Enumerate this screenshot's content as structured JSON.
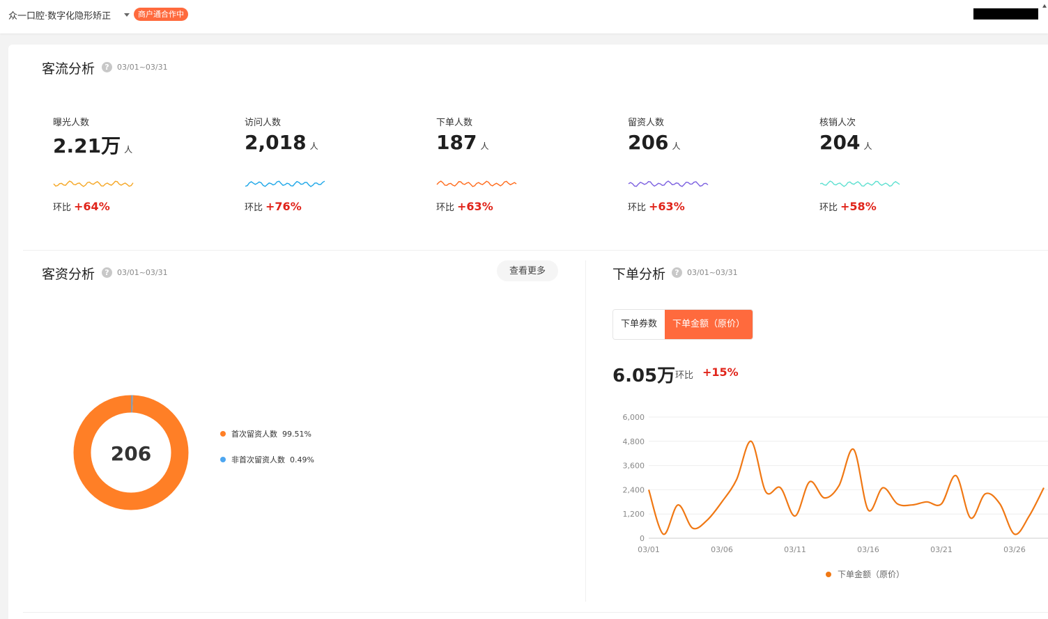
{
  "header": {
    "shop_name": "众一口腔·数字化隐形矫正",
    "badge": "商户通合作中"
  },
  "traffic": {
    "title": "客流分析",
    "date_range": "03/01~03/31",
    "help": "?",
    "kpis": [
      {
        "label": "曝光人数",
        "value": "2.21万",
        "unit": "人",
        "mom_label": "环比",
        "mom": "+64%",
        "color": "#f5a623"
      },
      {
        "label": "访问人数",
        "value": "2,018",
        "unit": "人",
        "mom_label": "环比",
        "mom": "+76%",
        "color": "#1ea7e8"
      },
      {
        "label": "下单人数",
        "value": "187",
        "unit": "人",
        "mom_label": "环比",
        "mom": "+63%",
        "color": "#ff6a1a"
      },
      {
        "label": "留资人数",
        "value": "206",
        "unit": "人",
        "mom_label": "环比",
        "mom": "+63%",
        "color": "#7b5fe0"
      },
      {
        "label": "核销人次",
        "value": "204",
        "unit": "人",
        "mom_label": "环比",
        "mom": "+58%",
        "color": "#5ee0d0"
      }
    ]
  },
  "leads": {
    "title": "客资分析",
    "date_range": "03/01~03/31",
    "help": "?",
    "more_label": "查看更多",
    "donut_center": "206",
    "donut_colors": {
      "first": "#ff7f26",
      "repeat": "#8e9aa8"
    },
    "legend": [
      {
        "label": "首次留资人数",
        "value": "99.51%",
        "color": "#ff7f26"
      },
      {
        "label": "非首次留资人数",
        "value": "0.49%",
        "color": "#4da6f0"
      }
    ]
  },
  "orders": {
    "title": "下单分析",
    "date_range": "03/01~03/31",
    "help": "?",
    "tabs": [
      {
        "label": "下单券数",
        "active": false
      },
      {
        "label": "下单金额（原价）",
        "active": true
      }
    ],
    "total": "6.05万",
    "mom_label": "环比",
    "mom": "+15%"
  },
  "chart_data": {
    "type": "line",
    "title": "",
    "xlabel": "",
    "ylabel": "",
    "x_ticks": [
      "03/01",
      "03/06",
      "03/11",
      "03/16",
      "03/21",
      "03/26"
    ],
    "y_ticks": [
      0,
      1200,
      2400,
      3600,
      4800,
      6000
    ],
    "y_tick_labels": [
      "0",
      "1,200",
      "2,400",
      "3,600",
      "4,800",
      "6,000"
    ],
    "ylim": [
      0,
      6000
    ],
    "grid": true,
    "legend_position": "bottom",
    "series": [
      {
        "name": "下单金额（原价）",
        "color": "#f07814",
        "x": [
          "03/01",
          "03/02",
          "03/03",
          "03/04",
          "03/05",
          "03/06",
          "03/07",
          "03/08",
          "03/09",
          "03/10",
          "03/11",
          "03/12",
          "03/13",
          "03/14",
          "03/15",
          "03/16",
          "03/17",
          "03/18",
          "03/19",
          "03/20",
          "03/21",
          "03/22",
          "03/23",
          "03/24",
          "03/25",
          "03/26",
          "03/27",
          "03/28"
        ],
        "values": [
          2400,
          200,
          1650,
          500,
          900,
          1800,
          2900,
          4800,
          2300,
          2500,
          1100,
          2800,
          2000,
          2600,
          4400,
          1400,
          2500,
          1700,
          1650,
          1800,
          1700,
          3100,
          1000,
          2200,
          1700,
          200,
          1100,
          2500
        ]
      }
    ]
  }
}
